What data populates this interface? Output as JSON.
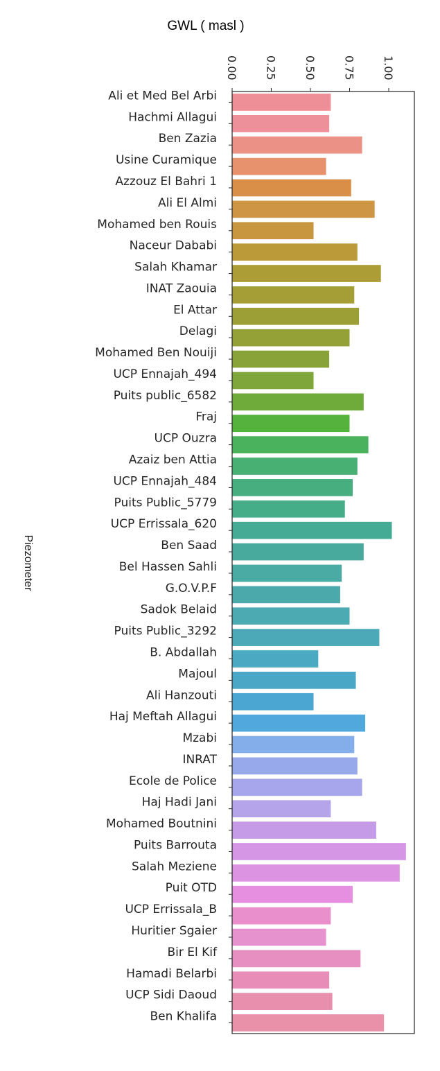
{
  "chart_data": {
    "type": "bar",
    "orientation": "horizontal",
    "title": "GWL ( masl )",
    "ylabel": "Piezometer",
    "xlim": [
      0,
      1.16
    ],
    "xticks": [
      "0.00",
      "0.25",
      "0.50",
      "0.75",
      "1.00"
    ],
    "categories": [
      "Ali et Med Bel Arbi",
      "Hachmi Allagui",
      "Ben Zazia",
      "Usine Curamique",
      "Azzouz El Bahri 1",
      "Ali El Almi",
      "Mohamed ben Rouis",
      "Naceur Dababi",
      "Salah Khamar",
      "INAT Zaouia",
      "El Attar",
      "Delagi",
      "Mohamed Ben Nouiji",
      "UCP Ennajah_494",
      "Puits public_6582",
      "Fraj",
      "UCP Ouzra",
      "Azaiz ben Attia",
      "UCP Ennajah_484",
      "Puits Public_5779",
      "UCP Errissala_620",
      "Ben Saad",
      "Bel Hassen Sahli",
      "G.O.V.P.F",
      "Sadok Belaid",
      "Puits Public_3292",
      "B. Abdallah",
      "Majoul",
      "Ali Hanzouti",
      "Haj Meftah Allagui",
      "Mzabi",
      "INRAT",
      "Ecole de Police",
      "Haj Hadi Jani",
      "Mohamed Boutnini",
      "Puits Barrouta",
      "Salah Meziene",
      "Puit OTD",
      "UCP Errissala_B",
      "Huritier Sgaier",
      "Bir El Kif",
      "Hamadi Belarbi",
      "UCP Sidi Daoud",
      "Ben Khalifa"
    ],
    "values": [
      0.63,
      0.62,
      0.83,
      0.6,
      0.76,
      0.91,
      0.52,
      0.8,
      0.95,
      0.78,
      0.81,
      0.75,
      0.62,
      0.52,
      0.84,
      0.75,
      0.87,
      0.8,
      0.77,
      0.72,
      1.02,
      0.84,
      0.7,
      0.69,
      0.75,
      0.94,
      0.55,
      0.79,
      0.52,
      0.85,
      0.78,
      0.8,
      0.83,
      0.63,
      0.92,
      1.11,
      1.07,
      0.77,
      0.63,
      0.6,
      0.82,
      0.62,
      0.64,
      0.97
    ],
    "colors": [
      "#ee8f98",
      "#ee909a",
      "#ec9186",
      "#e7916d",
      "#d98f47",
      "#ce9544",
      "#c8963f",
      "#bb9b39",
      "#ad9d36",
      "#a59e37",
      "#9c9f36",
      "#93a136",
      "#8aa338",
      "#7fa63a",
      "#6fab3a",
      "#54b23d",
      "#4ab25d",
      "#48b072",
      "#47ae80",
      "#45ad88",
      "#46ab94",
      "#48aa9d",
      "#4aaaa4",
      "#4ba9ac",
      "#4caab3",
      "#4ba9b8",
      "#4ba9c1",
      "#4aa8c6",
      "#4ba7d1",
      "#51a8dd",
      "#84aee9",
      "#97a8eb",
      "#a7a5eb",
      "#b5a4ea",
      "#c59be7",
      "#d597e5",
      "#dc93e2",
      "#e68fe1",
      "#e88fcc",
      "#e692ce",
      "#e68fc0",
      "#e88db7",
      "#e88fae",
      "#e891a8"
    ],
    "grid": false
  }
}
